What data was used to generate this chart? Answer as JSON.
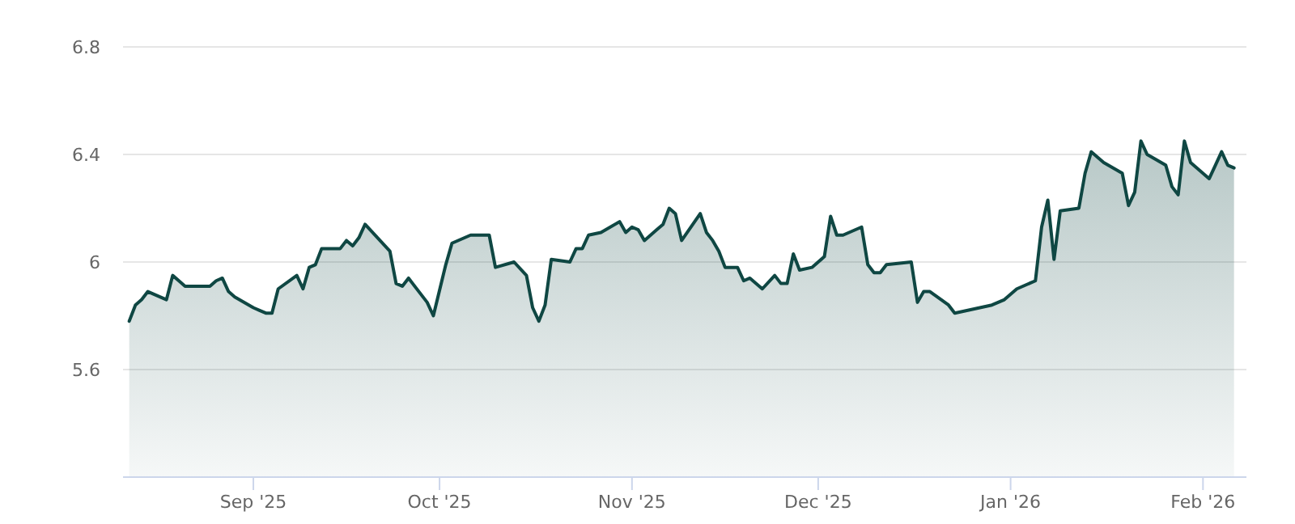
{
  "chart_data": {
    "type": "area",
    "color": "#0f4743",
    "grid": "y",
    "ylim": [
      5.2,
      6.8
    ],
    "yticks": [
      5.6,
      6,
      6.4,
      6.8
    ],
    "xlim": [
      "2025-08-11",
      "2026-02-08"
    ],
    "xticks": [
      {
        "value": "2025-09-01",
        "label": "Sep '25"
      },
      {
        "value": "2025-10-01",
        "label": "Oct '25"
      },
      {
        "value": "2025-11-01",
        "label": "Nov '25"
      },
      {
        "value": "2025-12-01",
        "label": "Dec '25"
      },
      {
        "value": "2026-01-01",
        "label": "Jan '26"
      },
      {
        "value": "2026-02-01",
        "label": "Feb '26"
      }
    ],
    "x": [
      "2025-08-12",
      "2025-08-13",
      "2025-08-14",
      "2025-08-15",
      "2025-08-18",
      "2025-08-19",
      "2025-08-20",
      "2025-08-21",
      "2025-08-25",
      "2025-08-26",
      "2025-08-27",
      "2025-08-28",
      "2025-08-29",
      "2025-09-01",
      "2025-09-02",
      "2025-09-03",
      "2025-09-04",
      "2025-09-05",
      "2025-09-08",
      "2025-09-09",
      "2025-09-10",
      "2025-09-11",
      "2025-09-12",
      "2025-09-15",
      "2025-09-16",
      "2025-09-17",
      "2025-09-18",
      "2025-09-19",
      "2025-09-23",
      "2025-09-24",
      "2025-09-25",
      "2025-09-26",
      "2025-09-29",
      "2025-09-30",
      "2025-10-02",
      "2025-10-03",
      "2025-10-06",
      "2025-10-09",
      "2025-10-10",
      "2025-10-13",
      "2025-10-15",
      "2025-10-16",
      "2025-10-17",
      "2025-10-18",
      "2025-10-19",
      "2025-10-22",
      "2025-10-23",
      "2025-10-24",
      "2025-10-25",
      "2025-10-27",
      "2025-10-30",
      "2025-10-31",
      "2025-11-01",
      "2025-11-02",
      "2025-11-03",
      "2025-11-05",
      "2025-11-06",
      "2025-11-07",
      "2025-11-08",
      "2025-11-09",
      "2025-11-12",
      "2025-11-13",
      "2025-11-14",
      "2025-11-15",
      "2025-11-16",
      "2025-11-18",
      "2025-11-19",
      "2025-11-20",
      "2025-11-22",
      "2025-11-24",
      "2025-11-25",
      "2025-11-26",
      "2025-11-27",
      "2025-11-28",
      "2025-11-30",
      "2025-12-02",
      "2025-12-03",
      "2025-12-04",
      "2025-12-05",
      "2025-12-08",
      "2025-12-09",
      "2025-12-10",
      "2025-12-11",
      "2025-12-12",
      "2025-12-16",
      "2025-12-17",
      "2025-12-18",
      "2025-12-19",
      "2025-12-22",
      "2025-12-23",
      "2025-12-29",
      "2025-12-31",
      "2026-01-02",
      "2026-01-05",
      "2026-01-06",
      "2026-01-07",
      "2026-01-08",
      "2026-01-09",
      "2026-01-12",
      "2026-01-13",
      "2026-01-14",
      "2026-01-16",
      "2026-01-19",
      "2026-01-20",
      "2026-01-21",
      "2026-01-22",
      "2026-01-23",
      "2026-01-26",
      "2026-01-27",
      "2026-01-28",
      "2026-01-29",
      "2026-01-30",
      "2026-02-02",
      "2026-02-03",
      "2026-02-04",
      "2026-02-05",
      "2026-02-06"
    ],
    "values": [
      5.78,
      5.84,
      5.86,
      5.89,
      5.86,
      5.95,
      5.93,
      5.91,
      5.91,
      5.93,
      5.94,
      5.89,
      5.87,
      5.83,
      5.82,
      5.81,
      5.81,
      5.9,
      5.95,
      5.9,
      5.98,
      5.99,
      6.05,
      6.05,
      6.08,
      6.06,
      6.09,
      6.14,
      6.04,
      5.92,
      5.91,
      5.94,
      5.85,
      5.8,
      5.99,
      6.07,
      6.1,
      6.1,
      5.98,
      6.0,
      5.95,
      5.83,
      5.78,
      5.84,
      6.01,
      6.0,
      6.05,
      6.05,
      6.1,
      6.11,
      6.15,
      6.11,
      6.13,
      6.12,
      6.08,
      6.12,
      6.14,
      6.2,
      6.18,
      6.08,
      6.18,
      6.11,
      6.08,
      6.04,
      5.98,
      5.98,
      5.93,
      5.94,
      5.9,
      5.95,
      5.92,
      5.92,
      6.03,
      5.97,
      5.98,
      6.02,
      6.17,
      6.1,
      6.1,
      6.13,
      5.99,
      5.96,
      5.96,
      5.99,
      6.0,
      5.85,
      5.89,
      5.89,
      5.84,
      5.81,
      5.84,
      5.86,
      5.9,
      5.93,
      6.13,
      6.23,
      6.01,
      6.19,
      6.2,
      6.33,
      6.41,
      6.37,
      6.33,
      6.21,
      6.26,
      6.45,
      6.4,
      6.36,
      6.28,
      6.25,
      6.45,
      6.37,
      6.31,
      6.36,
      6.41,
      6.36,
      6.35
    ]
  }
}
